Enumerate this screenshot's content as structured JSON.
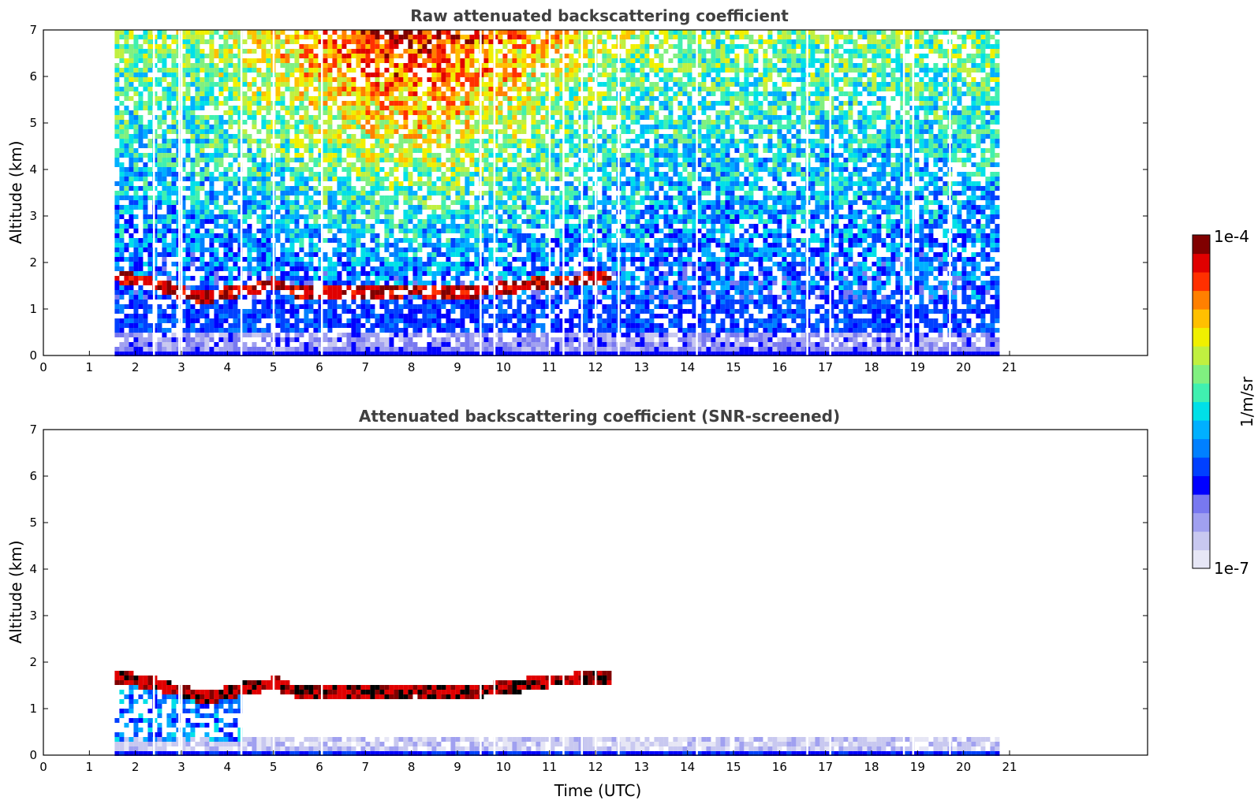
{
  "chart_data": [
    {
      "type": "heatmap",
      "title": "Raw attenuated backscattering coefficient",
      "xlabel": "",
      "ylabel": "Altitude (km)",
      "xlim": [
        0,
        24
      ],
      "ylim": [
        0,
        7
      ],
      "x_ticks": [
        "0",
        "1",
        "2",
        "3",
        "4",
        "5",
        "6",
        "7",
        "8",
        "9",
        "10",
        "11",
        "12",
        "13",
        "14",
        "15",
        "16",
        "17",
        "18",
        "19",
        "20",
        "21"
      ],
      "y_ticks": [
        "0",
        "1",
        "2",
        "3",
        "4",
        "5",
        "6",
        "7"
      ],
      "data_time_range": [
        1.55,
        20.7
      ],
      "cloud_layer": [
        {
          "time": 1.55,
          "altitude": 1.75
        },
        {
          "time": 2.5,
          "altitude": 1.55
        },
        {
          "time": 3.0,
          "altitude": 1.4
        },
        {
          "time": 3.3,
          "altitude": 1.3
        },
        {
          "time": 3.8,
          "altitude": 1.35
        },
        {
          "time": 4.2,
          "altitude": 1.45
        },
        {
          "time": 5.0,
          "altitude": 1.6
        },
        {
          "time": 5.5,
          "altitude": 1.4
        },
        {
          "time": 6.0,
          "altitude": 1.38
        },
        {
          "time": 7.0,
          "altitude": 1.38
        },
        {
          "time": 8.0,
          "altitude": 1.45
        },
        {
          "time": 9.0,
          "altitude": 1.38
        },
        {
          "time": 10.0,
          "altitude": 1.5
        },
        {
          "time": 11.0,
          "altitude": 1.65
        },
        {
          "time": 12.0,
          "altitude": 1.7
        },
        {
          "time": 12.3,
          "altitude": 1.75
        }
      ]
    },
    {
      "type": "heatmap",
      "title": "Attenuated backscattering coefficient (SNR-screened)",
      "xlabel": "Time (UTC)",
      "ylabel": "Altitude (km)",
      "xlim": [
        0,
        24
      ],
      "ylim": [
        0,
        7
      ],
      "x_ticks": [
        "0",
        "1",
        "2",
        "3",
        "4",
        "5",
        "6",
        "7",
        "8",
        "9",
        "10",
        "11",
        "12",
        "13",
        "14",
        "15",
        "16",
        "17",
        "18",
        "19",
        "20",
        "21"
      ],
      "y_ticks": [
        "0",
        "1",
        "2",
        "3",
        "4",
        "5",
        "6",
        "7"
      ],
      "data_time_range": [
        1.55,
        20.7
      ],
      "cloud_layer": [
        {
          "time": 1.55,
          "altitude": 1.75
        },
        {
          "time": 2.5,
          "altitude": 1.55
        },
        {
          "time": 3.0,
          "altitude": 1.4
        },
        {
          "time": 3.3,
          "altitude": 1.3
        },
        {
          "time": 3.8,
          "altitude": 1.35
        },
        {
          "time": 4.2,
          "altitude": 1.45
        },
        {
          "time": 5.0,
          "altitude": 1.6
        },
        {
          "time": 5.5,
          "altitude": 1.4
        },
        {
          "time": 6.0,
          "altitude": 1.38
        },
        {
          "time": 7.0,
          "altitude": 1.38
        },
        {
          "time": 8.0,
          "altitude": 1.45
        },
        {
          "time": 9.0,
          "altitude": 1.38
        },
        {
          "time": 10.0,
          "altitude": 1.5
        },
        {
          "time": 11.0,
          "altitude": 1.65
        },
        {
          "time": 12.0,
          "altitude": 1.7
        },
        {
          "time": 12.3,
          "altitude": 1.75
        }
      ]
    }
  ],
  "colorbar": {
    "label": "1/m/sr",
    "max_label": "1e-4",
    "min_label": "1e-7",
    "colors": [
      "#e6e6f5",
      "#c8c8f0",
      "#a0a0f0",
      "#7878f0",
      "#0000ff",
      "#0040ff",
      "#0080ff",
      "#00b0ff",
      "#00e0e8",
      "#40f0b0",
      "#80f080",
      "#c0f040",
      "#f0f000",
      "#ffc000",
      "#ff8000",
      "#ff3000",
      "#e00000",
      "#800000"
    ]
  }
}
